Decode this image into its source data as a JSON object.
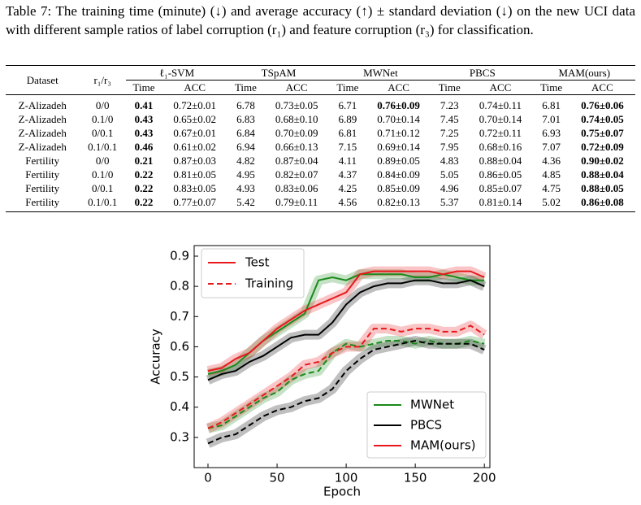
{
  "header": {
    "caption": "Table 7: The training time (minute) (↓) and average accuracy (↑) ± standard deviation (↓) on the new UCI data with different sample ratios of label corruption (r₁) and feature corruption (r₃) for classification."
  },
  "table": {
    "dataset": "Dataset",
    "ratio": "r₁/r₃",
    "methods": [
      "ℓ₁-SVM",
      "TSpAM",
      "MWNet",
      "PBCS",
      "MAM(ours)"
    ],
    "time": "Time",
    "acc": "ACC",
    "rows": [
      [
        "Z-Alizadeh",
        "0/0",
        "0.41",
        "0.72±0.01",
        "6.78",
        "0.73±0.05",
        "6.71",
        "0.76±0.09",
        "7.23",
        "0.74±0.11",
        "6.81",
        "0.76±0.06"
      ],
      [
        "Z-Alizadeh",
        "0.1/0",
        "0.43",
        "0.65±0.02",
        "6.83",
        "0.68±0.10",
        "6.89",
        "0.70±0.14",
        "7.45",
        "0.70±0.14",
        "7.01",
        "0.74±0.05"
      ],
      [
        "Z-Alizadeh",
        "0/0.1",
        "0.43",
        "0.67±0.01",
        "6.84",
        "0.70±0.09",
        "6.81",
        "0.71±0.12",
        "7.25",
        "0.72±0.11",
        "6.93",
        "0.75±0.07"
      ],
      [
        "Z-Alizadeh",
        "0.1/0.1",
        "0.46",
        "0.61±0.02",
        "6.94",
        "0.66±0.13",
        "7.15",
        "0.69±0.14",
        "7.95",
        "0.68±0.16",
        "7.07",
        "0.72±0.09"
      ],
      [
        "Fertility",
        "0/0",
        "0.21",
        "0.87±0.03",
        "4.82",
        "0.87±0.04",
        "4.11",
        "0.89±0.05",
        "4.83",
        "0.88±0.04",
        "4.36",
        "0.90±0.02"
      ],
      [
        "Fertility",
        "0.1/0",
        "0.22",
        "0.81±0.05",
        "4.95",
        "0.82±0.07",
        "4.37",
        "0.84±0.09",
        "5.05",
        "0.86±0.05",
        "4.85",
        "0.88±0.04"
      ],
      [
        "Fertility",
        "0/0.1",
        "0.22",
        "0.83±0.05",
        "4.93",
        "0.83±0.06",
        "4.25",
        "0.85±0.09",
        "4.96",
        "0.85±0.07",
        "4.75",
        "0.88±0.05"
      ],
      [
        "Fertility",
        "0.1/0.1",
        "0.22",
        "0.77±0.07",
        "5.42",
        "0.79±0.11",
        "4.56",
        "0.82±0.13",
        "5.37",
        "0.81±0.14",
        "5.02",
        "0.86±0.08"
      ]
    ]
  },
  "chart_data": {
    "type": "line",
    "x_label": "Epoch",
    "y_label": "Accuracy",
    "x": [
      0,
      10,
      20,
      30,
      40,
      50,
      60,
      70,
      80,
      90,
      100,
      110,
      120,
      130,
      140,
      150,
      160,
      170,
      180,
      190,
      200
    ],
    "splits": [
      "Test",
      "Training"
    ],
    "methods": [
      {
        "name": "MWNet",
        "color": "#1a8a1a",
        "test": [
          0.51,
          0.52,
          0.54,
          0.58,
          0.62,
          0.65,
          0.68,
          0.71,
          0.82,
          0.83,
          0.82,
          0.84,
          0.84,
          0.84,
          0.84,
          0.83,
          0.83,
          0.84,
          0.83,
          0.82,
          0.82
        ],
        "training": [
          0.33,
          0.34,
          0.37,
          0.4,
          0.43,
          0.45,
          0.49,
          0.51,
          0.52,
          0.58,
          0.61,
          0.6,
          0.61,
          0.62,
          0.62,
          0.61,
          0.62,
          0.61,
          0.61,
          0.62,
          0.61
        ]
      },
      {
        "name": "PBCS",
        "color": "#000000",
        "test": [
          0.49,
          0.51,
          0.52,
          0.55,
          0.57,
          0.6,
          0.63,
          0.64,
          0.64,
          0.68,
          0.74,
          0.78,
          0.8,
          0.81,
          0.81,
          0.82,
          0.82,
          0.81,
          0.81,
          0.82,
          0.8
        ],
        "training": [
          0.28,
          0.3,
          0.31,
          0.34,
          0.37,
          0.39,
          0.4,
          0.42,
          0.43,
          0.46,
          0.52,
          0.56,
          0.59,
          0.6,
          0.61,
          0.62,
          0.61,
          0.61,
          0.61,
          0.61,
          0.59
        ]
      },
      {
        "name": "MAM(ours)",
        "color": "#e8191c",
        "test": [
          0.52,
          0.53,
          0.56,
          0.58,
          0.62,
          0.66,
          0.69,
          0.72,
          0.74,
          0.76,
          0.78,
          0.84,
          0.85,
          0.85,
          0.85,
          0.85,
          0.85,
          0.84,
          0.85,
          0.85,
          0.83
        ],
        "training": [
          0.33,
          0.35,
          0.38,
          0.41,
          0.44,
          0.47,
          0.5,
          0.54,
          0.55,
          0.58,
          0.6,
          0.6,
          0.66,
          0.66,
          0.65,
          0.66,
          0.66,
          0.65,
          0.65,
          0.67,
          0.64
        ]
      }
    ],
    "xlim": [
      -10,
      204
    ],
    "ylim": [
      0.2,
      0.935
    ],
    "xticks": [
      0,
      50,
      100,
      150,
      200
    ],
    "yticks": [
      0.3,
      0.4,
      0.5,
      0.6,
      0.7,
      0.8,
      0.9
    ]
  }
}
